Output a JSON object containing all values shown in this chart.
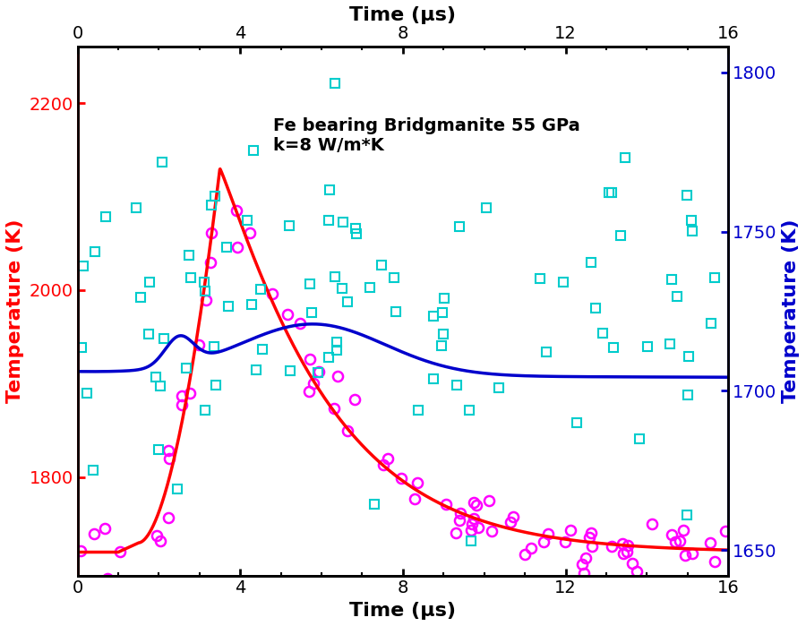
{
  "title_annotation": "Fe bearing Bridgmanite 55 GPa\nk=8 W/m*K",
  "xlabel_bottom": "Time (μs)",
  "xlabel_top": "Time (μs)",
  "ylabel_left": "Temperature (K)",
  "ylabel_right": "Temperature (K)",
  "xlim": [
    0,
    16
  ],
  "ylim_left": [
    1695,
    2260
  ],
  "ylim_right": [
    1642,
    1808
  ],
  "left_yticks": [
    1800,
    2000,
    2200
  ],
  "right_yticks": [
    1650,
    1700,
    1750,
    1800
  ],
  "xticks": [
    0,
    4,
    8,
    12,
    16
  ],
  "red_line_color": "#ff0000",
  "blue_line_color": "#0000cc",
  "magenta_marker_color": "#ff00ff",
  "cyan_marker_color": "#00cccc",
  "annotation_fontsize": 14,
  "axis_label_fontsize": 16,
  "tick_label_fontsize": 14,
  "left_axis_color": "#ff0000",
  "right_axis_color": "#0000cc"
}
